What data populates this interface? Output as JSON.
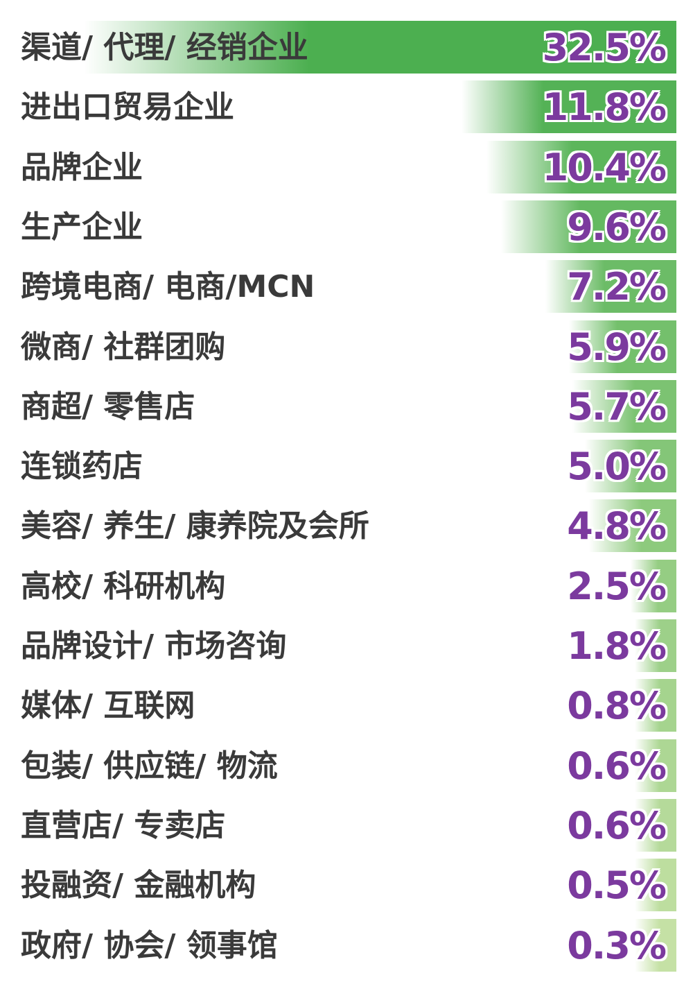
{
  "chart_data": {
    "type": "bar",
    "orientation": "horizontal",
    "categories": [
      "渠道/ 代理/ 经销企业",
      "进出口贸易企业",
      "品牌企业",
      "生产企业",
      "跨境电商/ 电商/MCN",
      "微商/ 社群团购",
      "商超/ 零售店",
      "连锁药店",
      "美容/ 养生/ 康养院及会所",
      "高校/ 科研机构",
      "品牌设计/ 市场咨询",
      "媒体/ 互联网",
      "包装/ 供应链/ 物流",
      "直营店/ 专卖店",
      "投融资/ 金融机构",
      "政府/ 协会/ 领事馆"
    ],
    "values": [
      32.5,
      11.8,
      10.4,
      9.6,
      7.2,
      5.9,
      5.7,
      5.0,
      4.8,
      2.5,
      1.8,
      0.8,
      0.6,
      0.6,
      0.5,
      0.3
    ],
    "value_labels": [
      "32.5%",
      "11.8%",
      "10.4%",
      "9.6%",
      "7.2%",
      "5.9%",
      "5.7%",
      "5.0%",
      "4.8%",
      "2.5%",
      "1.8%",
      "0.8%",
      "0.6%",
      "0.6%",
      "0.5%",
      "0.3%"
    ],
    "unit": "%",
    "title": "",
    "xlabel": "",
    "ylabel": "",
    "grid": false,
    "legend": "none",
    "colors": {
      "bar_dark": "#4caf50",
      "bar_light": "#c5e1a5",
      "bar_fade": "#ffffff",
      "label_text": "#3a3a3a",
      "value_text": "#7b3a9e",
      "value_outline": "#ffffff"
    }
  }
}
